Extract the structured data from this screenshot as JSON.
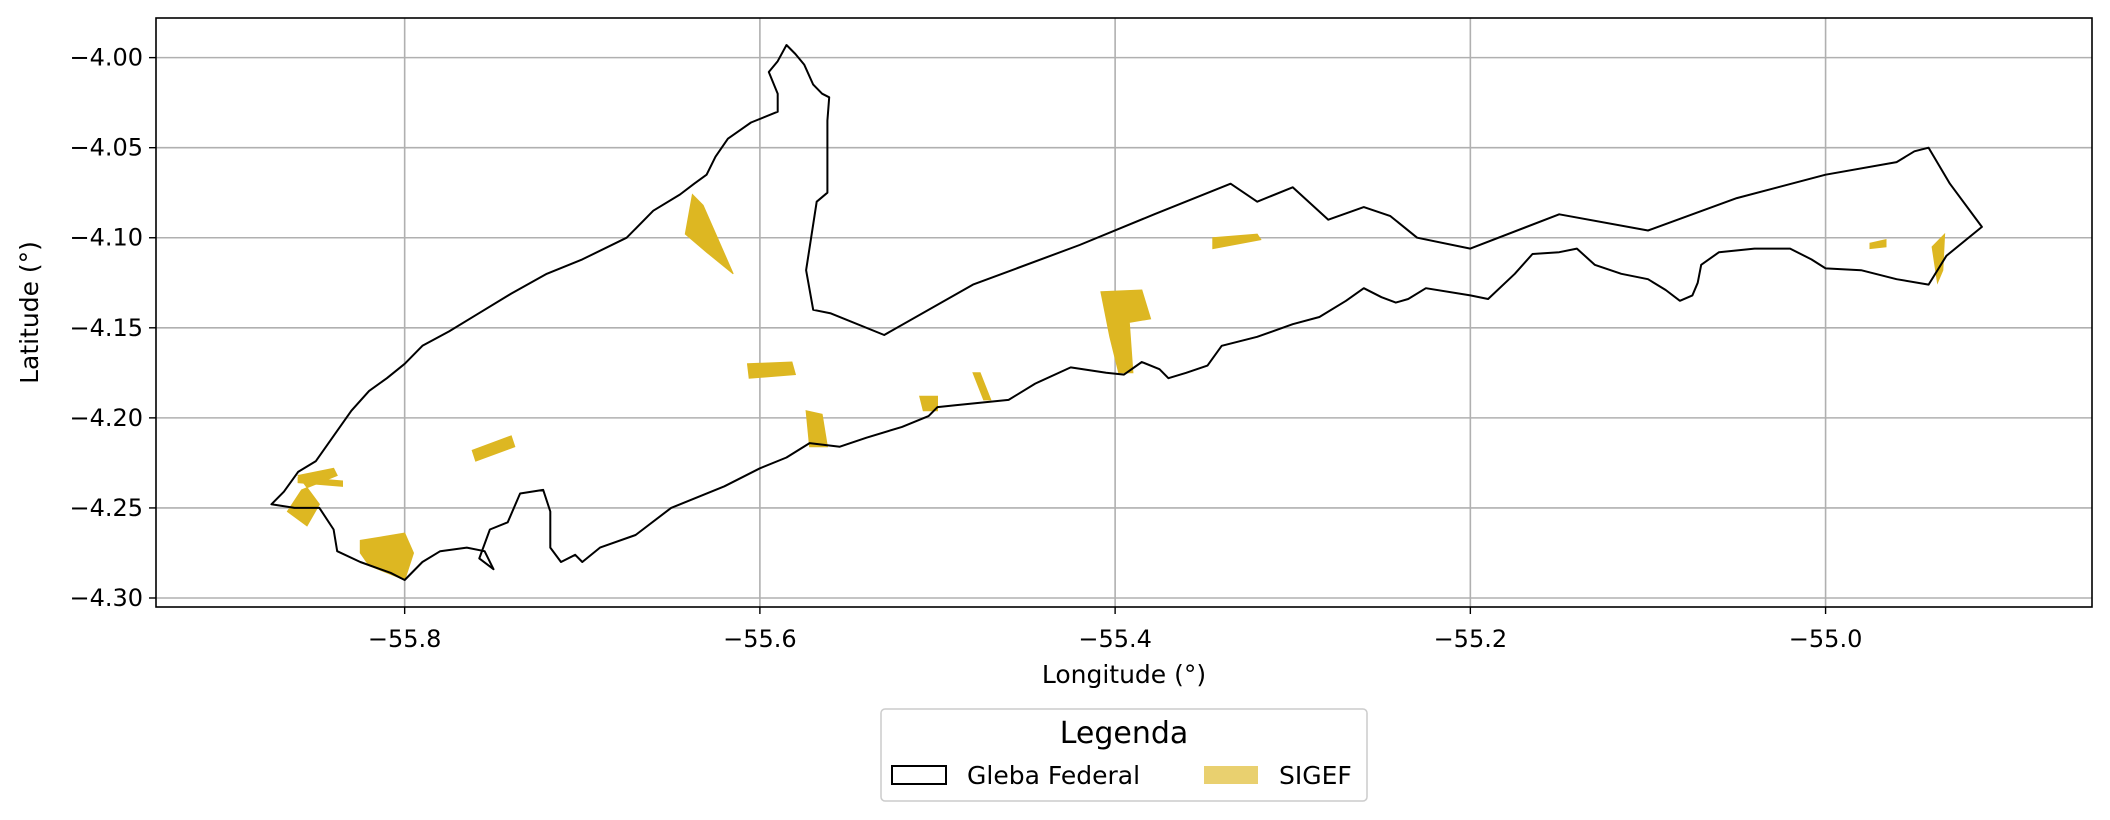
{
  "chart_data": {
    "type": "map",
    "xlabel": "Longitude (°)",
    "ylabel": "Latitude (°)",
    "xlim": [
      -55.94,
      -54.85
    ],
    "ylim": [
      -4.305,
      -3.978
    ],
    "x_ticks": [
      -55.8,
      -55.6,
      -55.4,
      -55.2,
      -55.0
    ],
    "x_tick_labels": [
      "−55.8",
      "−55.6",
      "−55.4",
      "−55.2",
      "−55.0"
    ],
    "y_ticks": [
      -4.0,
      -4.05,
      -4.1,
      -4.15,
      -4.2,
      -4.25,
      -4.3
    ],
    "y_tick_labels": [
      "−4.00",
      "−4.05",
      "−4.10",
      "−4.15",
      "−4.20",
      "−4.25",
      "−4.30"
    ],
    "grid": true,
    "legend": {
      "title": "Legenda",
      "placement": "bottom-center, below plot",
      "entries": [
        {
          "label": "Gleba Federal",
          "style": "outline",
          "color": "#000000"
        },
        {
          "label": "SIGEF",
          "style": "fill",
          "color": "#DDB722"
        }
      ]
    },
    "layers": {
      "gleba_federal": {
        "name": "Gleba Federal",
        "outline": [
          [
            -55.868,
            -4.241
          ],
          [
            -55.875,
            -4.248
          ],
          [
            -55.862,
            -4.25
          ],
          [
            -55.848,
            -4.25
          ],
          [
            -55.84,
            -4.262
          ],
          [
            -55.838,
            -4.274
          ],
          [
            -55.825,
            -4.28
          ],
          [
            -55.808,
            -4.286
          ],
          [
            -55.8,
            -4.29
          ],
          [
            -55.79,
            -4.28
          ],
          [
            -55.78,
            -4.274
          ],
          [
            -55.765,
            -4.272
          ],
          [
            -55.755,
            -4.274
          ],
          [
            -55.75,
            -4.284
          ],
          [
            -55.758,
            -4.278
          ],
          [
            -55.752,
            -4.262
          ],
          [
            -55.742,
            -4.258
          ],
          [
            -55.735,
            -4.242
          ],
          [
            -55.722,
            -4.24
          ],
          [
            -55.718,
            -4.252
          ],
          [
            -55.718,
            -4.272
          ],
          [
            -55.712,
            -4.28
          ],
          [
            -55.704,
            -4.276
          ],
          [
            -55.7,
            -4.28
          ],
          [
            -55.69,
            -4.272
          ],
          [
            -55.67,
            -4.265
          ],
          [
            -55.65,
            -4.25
          ],
          [
            -55.62,
            -4.238
          ],
          [
            -55.6,
            -4.228
          ],
          [
            -55.585,
            -4.222
          ],
          [
            -55.572,
            -4.214
          ],
          [
            -55.555,
            -4.216
          ],
          [
            -55.54,
            -4.211
          ],
          [
            -55.52,
            -4.205
          ],
          [
            -55.505,
            -4.199
          ],
          [
            -55.5,
            -4.194
          ],
          [
            -55.49,
            -4.193
          ],
          [
            -55.46,
            -4.19
          ],
          [
            -55.445,
            -4.181
          ],
          [
            -55.425,
            -4.172
          ],
          [
            -55.405,
            -4.175
          ],
          [
            -55.395,
            -4.176
          ],
          [
            -55.385,
            -4.169
          ],
          [
            -55.375,
            -4.173
          ],
          [
            -55.37,
            -4.178
          ],
          [
            -55.36,
            -4.175
          ],
          [
            -55.348,
            -4.171
          ],
          [
            -55.34,
            -4.16
          ],
          [
            -55.32,
            -4.155
          ],
          [
            -55.3,
            -4.148
          ],
          [
            -55.285,
            -4.144
          ],
          [
            -55.27,
            -4.135
          ],
          [
            -55.26,
            -4.128
          ],
          [
            -55.25,
            -4.133
          ],
          [
            -55.242,
            -4.136
          ],
          [
            -55.235,
            -4.134
          ],
          [
            -55.225,
            -4.128
          ],
          [
            -55.2,
            -4.132
          ],
          [
            -55.19,
            -4.134
          ],
          [
            -55.175,
            -4.12
          ],
          [
            -55.165,
            -4.109
          ],
          [
            -55.15,
            -4.108
          ],
          [
            -55.14,
            -4.106
          ],
          [
            -55.13,
            -4.115
          ],
          [
            -55.115,
            -4.12
          ],
          [
            -55.1,
            -4.123
          ],
          [
            -55.09,
            -4.129
          ],
          [
            -55.082,
            -4.135
          ],
          [
            -55.075,
            -4.132
          ],
          [
            -55.072,
            -4.125
          ],
          [
            -55.07,
            -4.115
          ],
          [
            -55.06,
            -4.108
          ],
          [
            -55.04,
            -4.106
          ],
          [
            -55.02,
            -4.106
          ],
          [
            -55.008,
            -4.112
          ],
          [
            -55.0,
            -4.117
          ],
          [
            -54.98,
            -4.118
          ],
          [
            -54.96,
            -4.123
          ],
          [
            -54.942,
            -4.126
          ],
          [
            -54.932,
            -4.11
          ],
          [
            -54.912,
            -4.094
          ],
          [
            -54.93,
            -4.07
          ],
          [
            -54.942,
            -4.05
          ],
          [
            -54.95,
            -4.052
          ],
          [
            -54.96,
            -4.058
          ],
          [
            -55.0,
            -4.065
          ],
          [
            -55.05,
            -4.078
          ],
          [
            -55.1,
            -4.096
          ],
          [
            -55.15,
            -4.087
          ],
          [
            -55.2,
            -4.106
          ],
          [
            -55.23,
            -4.1
          ],
          [
            -55.245,
            -4.088
          ],
          [
            -55.26,
            -4.083
          ],
          [
            -55.28,
            -4.09
          ],
          [
            -55.3,
            -4.072
          ],
          [
            -55.32,
            -4.08
          ],
          [
            -55.335,
            -4.07
          ],
          [
            -55.378,
            -4.087
          ],
          [
            -55.42,
            -4.104
          ],
          [
            -55.48,
            -4.126
          ],
          [
            -55.53,
            -4.154
          ],
          [
            -55.56,
            -4.142
          ],
          [
            -55.57,
            -4.14
          ],
          [
            -55.574,
            -4.118
          ],
          [
            -55.568,
            -4.08
          ],
          [
            -55.562,
            -4.075
          ],
          [
            -55.562,
            -4.035
          ],
          [
            -55.561,
            -4.022
          ],
          [
            -55.565,
            -4.02
          ],
          [
            -55.57,
            -4.015
          ],
          [
            -55.575,
            -4.004
          ],
          [
            -55.58,
            -3.998
          ],
          [
            -55.585,
            -3.993
          ],
          [
            -55.59,
            -4.002
          ],
          [
            -55.595,
            -4.008
          ],
          [
            -55.59,
            -4.02
          ],
          [
            -55.59,
            -4.03
          ],
          [
            -55.605,
            -4.036
          ],
          [
            -55.618,
            -4.045
          ],
          [
            -55.625,
            -4.055
          ],
          [
            -55.63,
            -4.065
          ],
          [
            -55.637,
            -4.07
          ],
          [
            -55.645,
            -4.076
          ],
          [
            -55.66,
            -4.085
          ],
          [
            -55.675,
            -4.1
          ],
          [
            -55.7,
            -4.112
          ],
          [
            -55.72,
            -4.12
          ],
          [
            -55.74,
            -4.131
          ],
          [
            -55.76,
            -4.143
          ],
          [
            -55.775,
            -4.152
          ],
          [
            -55.79,
            -4.16
          ],
          [
            -55.8,
            -4.17
          ],
          [
            -55.81,
            -4.178
          ],
          [
            -55.82,
            -4.185
          ],
          [
            -55.83,
            -4.196
          ],
          [
            -55.84,
            -4.21
          ],
          [
            -55.85,
            -4.224
          ],
          [
            -55.86,
            -4.23
          ],
          [
            -55.868,
            -4.241
          ]
        ]
      },
      "sigef": {
        "name": "SIGEF",
        "color": "#DDB722",
        "parcels": [
          [
            [
              -55.638,
              -4.076
            ],
            [
              -55.632,
              -4.082
            ],
            [
              -55.615,
              -4.12
            ],
            [
              -55.63,
              -4.108
            ],
            [
              -55.642,
              -4.098
            ]
          ],
          [
            [
              -55.607,
              -4.17
            ],
            [
              -55.582,
              -4.169
            ],
            [
              -55.58,
              -4.176
            ],
            [
              -55.606,
              -4.178
            ]
          ],
          [
            [
              -55.574,
              -4.196
            ],
            [
              -55.565,
              -4.198
            ],
            [
              -55.562,
              -4.216
            ],
            [
              -55.572,
              -4.216
            ]
          ],
          [
            [
              -55.51,
              -4.188
            ],
            [
              -55.5,
              -4.188
            ],
            [
              -55.5,
              -4.196
            ],
            [
              -55.508,
              -4.196
            ]
          ],
          [
            [
              -55.48,
              -4.175
            ],
            [
              -55.476,
              -4.175
            ],
            [
              -55.47,
              -4.19
            ],
            [
              -55.474,
              -4.19
            ]
          ],
          [
            [
              -55.408,
              -4.13
            ],
            [
              -55.385,
              -4.129
            ],
            [
              -55.38,
              -4.145
            ],
            [
              -55.392,
              -4.147
            ],
            [
              -55.39,
              -4.175
            ],
            [
              -55.398,
              -4.175
            ],
            [
              -55.403,
              -4.155
            ]
          ],
          [
            [
              -55.345,
              -4.1
            ],
            [
              -55.32,
              -4.098
            ],
            [
              -55.318,
              -4.101
            ],
            [
              -55.345,
              -4.106
            ]
          ],
          [
            [
              -55.762,
              -4.218
            ],
            [
              -55.74,
              -4.21
            ],
            [
              -55.738,
              -4.216
            ],
            [
              -55.76,
              -4.224
            ]
          ],
          [
            [
              -55.86,
              -4.232
            ],
            [
              -55.84,
              -4.228
            ],
            [
              -55.838,
              -4.232
            ],
            [
              -55.858,
              -4.24
            ],
            [
              -55.866,
              -4.252
            ],
            [
              -55.855,
              -4.26
            ],
            [
              -55.848,
              -4.248
            ]
          ],
          [
            [
              -55.86,
              -4.233
            ],
            [
              -55.835,
              -4.235
            ],
            [
              -55.835,
              -4.238
            ],
            [
              -55.86,
              -4.236
            ]
          ],
          [
            [
              -55.825,
              -4.268
            ],
            [
              -55.8,
              -4.264
            ],
            [
              -55.795,
              -4.275
            ],
            [
              -55.8,
              -4.29
            ],
            [
              -55.82,
              -4.282
            ],
            [
              -55.825,
              -4.275
            ]
          ],
          [
            [
              -54.975,
              -4.103
            ],
            [
              -54.966,
              -4.101
            ],
            [
              -54.966,
              -4.105
            ],
            [
              -54.975,
              -4.106
            ]
          ],
          [
            [
              -54.94,
              -4.105
            ],
            [
              -54.933,
              -4.098
            ],
            [
              -54.934,
              -4.118
            ],
            [
              -54.937,
              -4.125
            ]
          ]
        ]
      }
    }
  }
}
